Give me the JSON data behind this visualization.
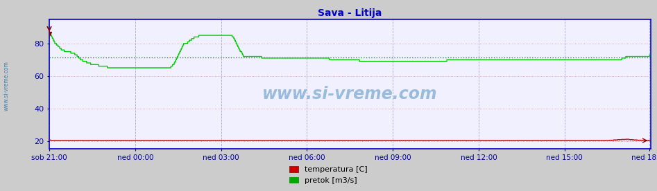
{
  "title": "Sava - Litija",
  "title_color": "#0000cc",
  "bg_color": "#cccccc",
  "plot_bg_color": "#f0f0ff",
  "xlabel_ticks": [
    "sob 21:00",
    "ned 00:00",
    "ned 03:00",
    "ned 06:00",
    "ned 09:00",
    "ned 12:00",
    "ned 15:00",
    "ned 18:00"
  ],
  "yticks": [
    20,
    40,
    60,
    80
  ],
  "ylim": [
    15,
    95
  ],
  "xlim": [
    0,
    756
  ],
  "tick_color": "#0000aa",
  "watermark": "www.si-vreme.com",
  "watermark_color": "#4488bb",
  "legend": [
    {
      "label": "temperatura [C]",
      "color": "#cc0000"
    },
    {
      "label": "pretok [m3/s]",
      "color": "#00aa00"
    }
  ],
  "avg_pretok": 71.5,
  "avg_temp": 20.2,
  "pretok_color": "#00cc00",
  "temp_color": "#cc0000",
  "avg_pretok_color": "#00aa00",
  "avg_temp_color": "#cc0000",
  "n_points": 756,
  "spine_color": "#0000cc",
  "grid_h_color": "#dd8888",
  "grid_v_color": "#8888cc",
  "pretok_data": [
    86,
    86,
    85,
    84,
    83,
    82,
    81,
    80,
    80,
    79,
    79,
    78,
    78,
    77,
    77,
    76,
    76,
    76,
    76,
    75,
    75,
    75,
    75,
    75,
    75,
    75,
    75,
    74,
    74,
    74,
    74,
    74,
    73,
    73,
    73,
    72,
    72,
    71,
    71,
    70,
    70,
    70,
    69,
    69,
    69,
    69,
    69,
    68,
    68,
    68,
    68,
    68,
    67,
    67,
    67,
    67,
    67,
    67,
    67,
    67,
    67,
    67,
    66,
    66,
    66,
    66,
    66,
    66,
    66,
    66,
    66,
    66,
    66,
    65,
    65,
    65,
    65,
    65,
    65,
    65,
    65,
    65,
    65,
    65,
    65,
    65,
    65,
    65,
    65,
    65,
    65,
    65,
    65,
    65,
    65,
    65,
    65,
    65,
    65,
    65,
    65,
    65,
    65,
    65,
    65,
    65,
    65,
    65,
    65,
    65,
    65,
    65,
    65,
    65,
    65,
    65,
    65,
    65,
    65,
    65,
    65,
    65,
    65,
    65,
    65,
    65,
    65,
    65,
    65,
    65,
    65,
    65,
    65,
    65,
    65,
    65,
    65,
    65,
    65,
    65,
    65,
    65,
    65,
    65,
    65,
    65,
    65,
    65,
    65,
    65,
    65,
    65,
    65,
    66,
    66,
    67,
    67,
    68,
    69,
    70,
    71,
    72,
    73,
    74,
    75,
    76,
    77,
    78,
    79,
    80,
    80,
    80,
    80,
    80,
    81,
    81,
    82,
    82,
    82,
    83,
    83,
    83,
    84,
    84,
    84,
    84,
    84,
    84,
    85,
    85,
    85,
    85,
    85,
    85,
    85,
    85,
    85,
    85,
    85,
    85,
    85,
    85,
    85,
    85,
    85,
    85,
    85,
    85,
    85,
    85,
    85,
    85,
    85,
    85,
    85,
    85,
    85,
    85,
    85,
    85,
    85,
    85,
    85,
    85,
    85,
    85,
    85,
    85,
    85,
    85,
    84,
    84,
    83,
    82,
    81,
    80,
    79,
    78,
    77,
    76,
    75,
    75,
    74,
    73,
    72,
    72,
    72,
    72,
    72,
    72,
    72,
    72,
    72,
    72,
    72,
    72,
    72,
    72,
    72,
    72,
    72,
    72,
    72,
    72,
    72,
    72,
    72,
    71,
    71,
    71,
    71,
    71,
    71,
    71,
    71,
    71,
    71,
    71,
    71,
    71,
    71,
    71,
    71,
    71,
    71,
    71,
    71,
    71,
    71,
    71,
    71,
    71,
    71,
    71,
    71,
    71,
    71,
    71,
    71,
    71,
    71,
    71,
    71,
    71,
    71,
    71,
    71,
    71,
    71,
    71,
    71,
    71,
    71,
    71,
    71,
    71,
    71,
    71,
    71,
    71,
    71,
    71,
    71,
    71,
    71,
    71,
    71,
    71,
    71,
    71,
    71,
    71,
    71,
    71,
    71,
    71,
    71,
    71,
    71,
    71,
    71,
    71,
    71,
    71,
    71,
    71,
    71,
    71,
    71,
    71,
    71,
    71,
    70,
    70,
    70,
    70,
    70,
    70,
    70,
    70,
    70,
    70,
    70,
    70,
    70,
    70,
    70,
    70,
    70,
    70,
    70,
    70,
    70,
    70,
    70,
    70,
    70,
    70,
    70,
    70,
    70,
    70,
    70,
    70,
    70,
    70,
    70,
    70,
    70,
    70,
    69,
    69,
    69,
    69,
    69,
    69,
    69,
    69,
    69,
    69,
    69,
    69,
    69,
    69,
    69,
    69,
    69,
    69,
    69,
    69,
    69,
    69,
    69,
    69,
    69,
    69,
    69,
    69,
    69,
    69,
    69,
    69,
    69,
    69,
    69,
    69,
    69,
    69,
    69,
    69,
    69,
    69,
    69,
    69,
    69,
    69,
    69,
    69,
    69,
    69,
    69,
    69,
    69,
    69,
    69,
    69,
    69,
    69,
    69,
    69,
    69,
    69,
    69,
    69,
    69,
    69,
    69,
    69,
    69,
    69,
    69,
    69,
    69,
    69,
    69,
    69,
    69,
    69,
    69,
    69,
    69,
    69,
    69,
    69,
    69,
    69,
    69,
    69,
    69,
    69,
    69,
    69,
    69,
    69,
    69,
    69,
    69,
    69,
    69,
    69,
    69,
    69,
    69,
    69,
    69,
    69,
    69,
    69,
    69,
    69,
    70,
    70,
    70,
    70,
    70,
    70,
    70,
    70,
    70,
    70,
    70,
    70,
    70,
    70,
    70,
    70,
    70,
    70,
    70,
    70,
    70,
    70,
    70,
    70,
    70,
    70,
    70,
    70,
    70,
    70,
    70,
    70,
    70,
    70,
    70,
    70,
    70,
    70,
    70,
    70,
    70,
    70,
    70,
    70,
    70,
    70,
    70,
    70,
    70,
    70,
    70,
    70,
    70,
    70,
    70,
    70,
    70,
    70,
    70,
    70,
    70,
    70,
    70,
    70,
    70,
    70,
    70,
    70,
    70,
    70,
    70,
    70,
    70,
    70,
    70,
    70,
    70,
    70,
    70,
    70,
    70,
    70,
    70,
    70,
    70,
    70,
    70,
    70,
    70,
    70,
    70,
    70,
    70,
    70,
    70,
    70,
    70,
    70,
    70,
    70,
    70,
    70,
    70,
    70,
    70,
    70,
    70,
    70,
    70,
    70,
    70,
    70,
    70,
    70,
    70,
    70,
    70,
    70,
    70,
    70,
    70,
    70,
    70,
    70,
    70,
    70,
    70,
    70,
    70,
    70,
    70,
    70,
    70,
    70,
    70,
    70,
    70,
    70,
    70,
    70,
    70,
    70,
    70,
    70,
    70,
    70,
    70,
    70,
    70,
    70,
    70,
    70,
    70,
    70,
    70,
    70,
    70,
    70,
    70,
    70,
    70,
    70,
    70,
    70,
    70,
    70,
    70,
    70,
    70,
    70,
    70,
    70,
    70,
    70,
    70,
    70,
    70,
    70,
    70,
    70,
    70,
    70,
    70,
    70,
    70,
    70,
    70,
    70,
    70,
    70,
    70,
    70,
    70,
    70,
    70,
    70,
    70,
    70,
    70,
    70,
    70,
    70,
    70,
    70,
    70,
    70,
    70,
    70,
    70,
    70,
    70,
    70,
    70,
    70,
    70,
    70,
    70,
    70,
    70,
    70,
    71,
    71,
    71,
    71,
    71,
    72,
    72,
    72,
    72,
    72,
    72,
    72,
    72,
    72,
    72,
    72,
    72,
    72,
    72,
    72,
    72,
    72,
    72,
    72,
    72,
    72,
    72,
    72,
    72,
    72,
    72,
    72,
    72,
    72,
    72,
    73
  ]
}
